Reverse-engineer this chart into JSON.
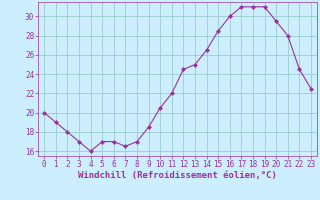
{
  "x": [
    0,
    1,
    2,
    3,
    4,
    5,
    6,
    7,
    8,
    9,
    10,
    11,
    12,
    13,
    14,
    15,
    16,
    17,
    18,
    19,
    20,
    21,
    22,
    23
  ],
  "y": [
    20,
    19,
    18,
    17,
    16,
    17,
    17,
    16.5,
    17,
    18.5,
    20.5,
    22,
    24.5,
    25,
    26.5,
    28.5,
    30,
    31,
    31,
    31,
    29.5,
    28,
    24.5,
    22.5
  ],
  "line_color": "#993399",
  "marker": "D",
  "marker_size": 2.0,
  "bg_color": "#cceeff",
  "grid_color": "#99cccc",
  "xlabel": "Windchill (Refroidissement éolien,°C)",
  "xlabel_fontsize": 6.5,
  "tick_fontsize": 5.5,
  "ylim": [
    15.5,
    31.5
  ],
  "yticks": [
    16,
    18,
    20,
    22,
    24,
    26,
    28,
    30
  ],
  "xlim": [
    -0.5,
    23.5
  ],
  "xticks": [
    0,
    1,
    2,
    3,
    4,
    5,
    6,
    7,
    8,
    9,
    10,
    11,
    12,
    13,
    14,
    15,
    16,
    17,
    18,
    19,
    20,
    21,
    22,
    23
  ]
}
